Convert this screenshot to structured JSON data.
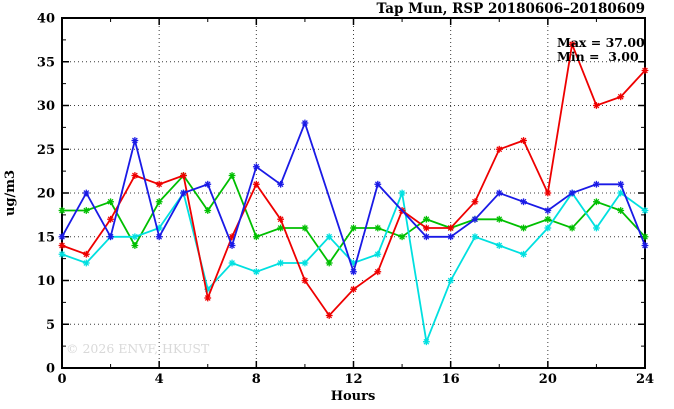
{
  "annotation": {
    "max_label": "Max = 37.00",
    "min_label": "Min =  3.00"
  },
  "watermark": "© 2026 ENVF, HKUST",
  "chart_data": {
    "type": "line",
    "title": "Tap Mun, RSP 20180606–20180609",
    "xlabel": "Hours",
    "ylabel": "ug/m3",
    "xlim": [
      0,
      24
    ],
    "ylim": [
      0,
      40
    ],
    "xticks": [
      0,
      4,
      8,
      12,
      16,
      20,
      24
    ],
    "yticks": [
      0,
      5,
      10,
      15,
      20,
      25,
      30,
      35,
      40
    ],
    "x_minor_step": 2,
    "y_minor_step": 2.5,
    "grid": true,
    "legend": "none",
    "marker": "asterisk",
    "stats": {
      "max": 37.0,
      "min": 3.0
    },
    "x": [
      0,
      1,
      2,
      3,
      4,
      5,
      6,
      7,
      8,
      9,
      10,
      11,
      12,
      13,
      14,
      15,
      16,
      17,
      18,
      19,
      20,
      21,
      22,
      23,
      24
    ],
    "series": [
      {
        "name": "green",
        "color": "#00bf00",
        "values": [
          18,
          18,
          19,
          14,
          19,
          22,
          18,
          22,
          15,
          16,
          16,
          12,
          16,
          16,
          15,
          17,
          16,
          17,
          17,
          16,
          17,
          16,
          19,
          18,
          15
        ]
      },
      {
        "name": "cyan",
        "color": "#00e0e0",
        "values": [
          13,
          12,
          15,
          15,
          16,
          20,
          9,
          12,
          11,
          12,
          12,
          15,
          12,
          13,
          20,
          3,
          10,
          15,
          14,
          13,
          16,
          20,
          16,
          20,
          18
        ]
      },
      {
        "name": "red",
        "color": "#ee0000",
        "values": [
          14,
          13,
          17,
          22,
          21,
          22,
          8,
          15,
          21,
          17,
          10,
          6,
          9,
          11,
          18,
          16,
          16,
          19,
          25,
          26,
          20,
          37,
          30,
          31,
          34
        ]
      },
      {
        "name": "blue",
        "color": "#1a1ae6",
        "values": [
          15,
          20,
          15,
          26,
          15,
          20,
          21,
          14,
          23,
          21,
          28,
          null,
          11,
          21,
          null,
          15,
          15,
          17,
          20,
          19,
          18,
          20,
          21,
          21,
          14
        ]
      }
    ]
  }
}
